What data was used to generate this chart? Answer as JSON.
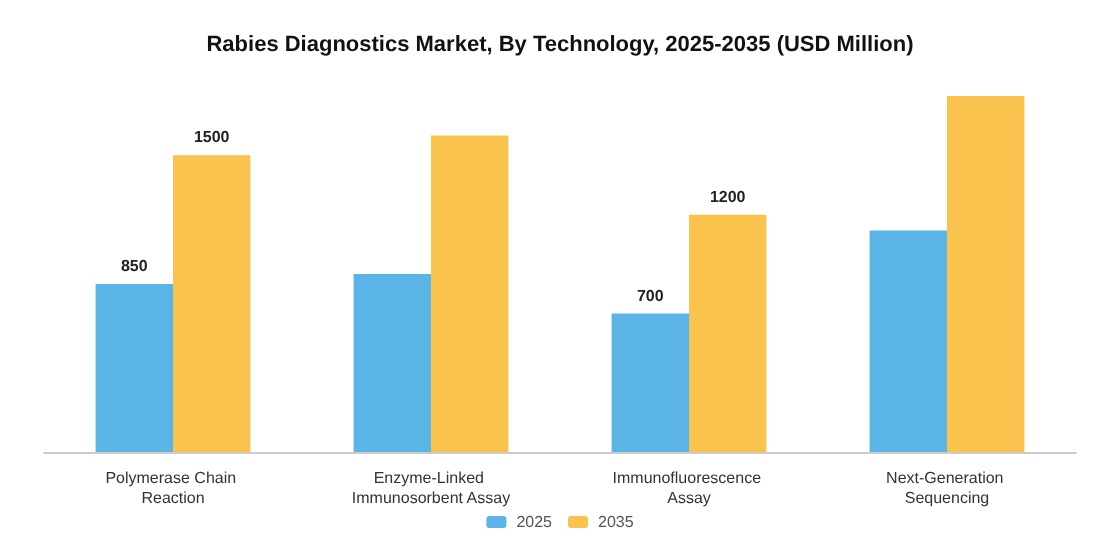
{
  "chart_data": {
    "type": "bar",
    "title": "Rabies Diagnostics Market, By Technology, 2025-2035 (USD Million)",
    "categories": [
      "Polymerase Chain Reaction",
      "Enzyme-Linked Immunosorbent Assay",
      "Immunofluorescence Assay",
      "Next-Generation Sequencing"
    ],
    "series": [
      {
        "name": "2025",
        "color": "#5ab4e5",
        "values": [
          850,
          900,
          700,
          1120
        ],
        "value_labels": [
          "850",
          null,
          "700",
          null
        ]
      },
      {
        "name": "2035",
        "color": "#f9c34e",
        "values": [
          1500,
          1600,
          1200,
          1800
        ],
        "value_labels": [
          "1500",
          null,
          "1200",
          null
        ]
      }
    ],
    "legend": "bottom",
    "tick_labels": "x"
  }
}
